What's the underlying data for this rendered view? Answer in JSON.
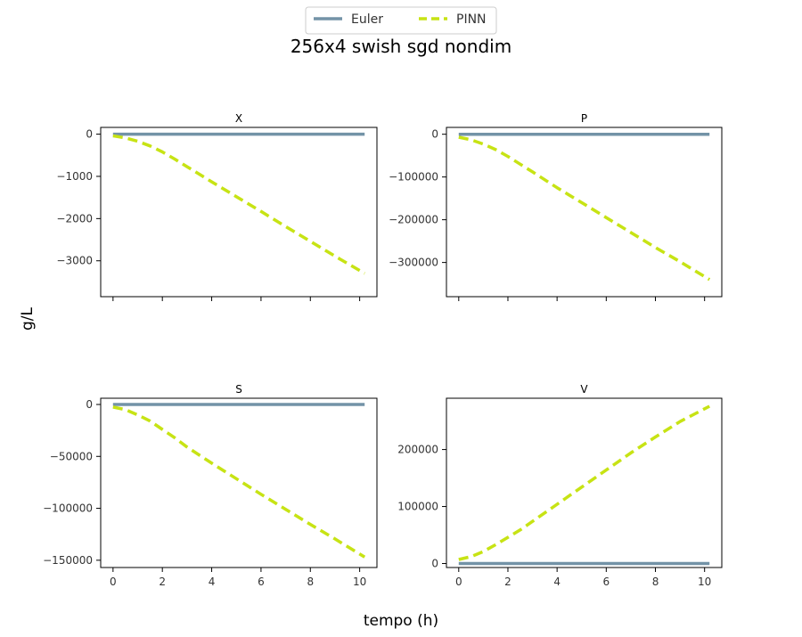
{
  "figure": {
    "title": "256x4 swish sgd nondim",
    "xlabel": "tempo (h)",
    "ylabel": "g/L"
  },
  "legend": {
    "placement": "top-center",
    "entries": [
      {
        "label": "Euler",
        "color": "#7393a7",
        "style": "solid"
      },
      {
        "label": "PINN",
        "color": "#c7e314",
        "style": "dashed"
      }
    ]
  },
  "colors": {
    "euler": "#7393a7",
    "pinn": "#c7e314"
  },
  "chart_data": [
    {
      "type": "line",
      "title": "X",
      "xlim": [
        -0.5,
        10.7
      ],
      "ylim": [
        -3850,
        160
      ],
      "xticks": [
        0,
        2,
        4,
        6,
        8,
        10
      ],
      "yticks": [
        0,
        -1000,
        -2000,
        -3000
      ],
      "yticklabels": [
        "0",
        "−1000",
        "−2000",
        "−3000"
      ],
      "show_xticklabels": false,
      "series": [
        {
          "name": "Euler",
          "x": [
            0,
            10.2
          ],
          "values": [
            0,
            0
          ]
        },
        {
          "name": "PINN",
          "x": [
            0,
            0.5,
            1,
            1.5,
            2,
            2.5,
            3,
            4,
            5,
            6,
            7,
            8,
            9,
            10.2
          ],
          "values": [
            -40,
            -90,
            -170,
            -280,
            -420,
            -590,
            -770,
            -1130,
            -1480,
            -1830,
            -2190,
            -2540,
            -2890,
            -3300
          ]
        }
      ]
    },
    {
      "type": "line",
      "title": "P",
      "xlim": [
        -0.5,
        10.7
      ],
      "ylim": [
        -380000,
        16000
      ],
      "xticks": [
        0,
        2,
        4,
        6,
        8,
        10
      ],
      "yticks": [
        0,
        -100000,
        -200000,
        -300000
      ],
      "yticklabels": [
        "0",
        "−100000",
        "−200000",
        "−300000"
      ],
      "show_xticklabels": false,
      "series": [
        {
          "name": "Euler",
          "x": [
            0,
            10.2
          ],
          "values": [
            0,
            0
          ]
        },
        {
          "name": "PINN",
          "x": [
            0,
            0.5,
            1,
            1.5,
            2,
            2.5,
            3,
            4,
            5,
            6,
            7,
            8,
            9,
            10.2
          ],
          "values": [
            -7000,
            -13000,
            -23000,
            -36000,
            -52000,
            -70000,
            -88000,
            -125000,
            -160000,
            -195000,
            -230000,
            -265000,
            -298000,
            -340000
          ]
        }
      ]
    },
    {
      "type": "line",
      "title": "S",
      "xlim": [
        -0.5,
        10.7
      ],
      "ylim": [
        -157000,
        6000
      ],
      "xticks": [
        0,
        2,
        4,
        6,
        8,
        10
      ],
      "yticks": [
        0,
        -50000,
        -100000,
        -150000
      ],
      "yticklabels": [
        "0",
        "−50000",
        "−100000",
        "−150000"
      ],
      "show_xticklabels": true,
      "series": [
        {
          "name": "Euler",
          "x": [
            0,
            10.2
          ],
          "values": [
            0,
            0
          ]
        },
        {
          "name": "PINN",
          "x": [
            0,
            0.5,
            1,
            1.5,
            2,
            2.5,
            3,
            4,
            5,
            6,
            7,
            8,
            9,
            10.2
          ],
          "values": [
            -2500,
            -5000,
            -10000,
            -16000,
            -24000,
            -32000,
            -41000,
            -56500,
            -71500,
            -86500,
            -101000,
            -115500,
            -129500,
            -147000
          ]
        }
      ]
    },
    {
      "type": "line",
      "title": "V",
      "xlim": [
        -0.5,
        10.7
      ],
      "ylim": [
        -7000,
        290000
      ],
      "xticks": [
        0,
        2,
        4,
        6,
        8,
        10
      ],
      "yticks": [
        0,
        100000,
        200000
      ],
      "yticklabels": [
        "0",
        "100000",
        "200000"
      ],
      "show_xticklabels": true,
      "series": [
        {
          "name": "Euler",
          "x": [
            0,
            10.2
          ],
          "values": [
            0,
            0
          ]
        },
        {
          "name": "PINN",
          "x": [
            0,
            0.5,
            1,
            1.5,
            2,
            2.5,
            3,
            4,
            5,
            6,
            7,
            8,
            9,
            10.2
          ],
          "values": [
            7000,
            12000,
            21000,
            33000,
            46000,
            59000,
            74000,
            104000,
            134000,
            164000,
            194000,
            222000,
            249000,
            276000
          ]
        }
      ]
    }
  ]
}
